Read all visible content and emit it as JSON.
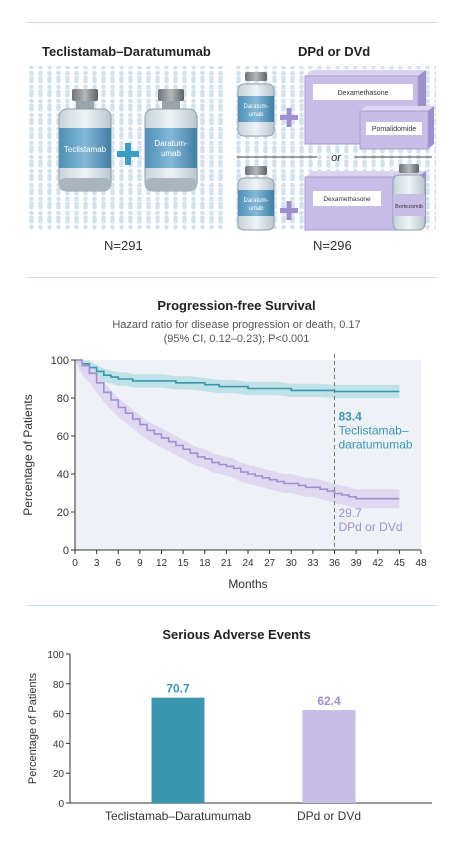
{
  "arms": {
    "left": {
      "title": "Teclistamab–Daratumumab",
      "n": "N=291",
      "vial1": "Teclistamab",
      "vial2_line1": "Daratum-",
      "vial2_line2": "umab"
    },
    "right": {
      "title": "DPd or DVd",
      "n": "N=296",
      "or": "or",
      "vial_line1": "Daratum-",
      "vial_line2": "umab",
      "box_dex": "Dexamethasone",
      "box_pom": "Pomalidomide",
      "box_dex2": "Dexamethasone",
      "box_bor": "Bortezomib"
    }
  },
  "colors": {
    "teal": "#3a96b0",
    "lavender": "#a08fd0",
    "lavender_light": "#c7bde6",
    "panel": "#eef2f6",
    "people": "#dbe8f1",
    "plus": "#3e9cc0"
  },
  "chart_data": [
    {
      "type": "line",
      "title": "Progression-free Survival",
      "subtitle_line1": "Hazard ratio for disease progression or death, 0.17",
      "subtitle_line2": "(95% CI, 0.12–0.23); P<0.001",
      "xlabel": "Months",
      "ylabel": "Percentage of Patients",
      "xlim": [
        0,
        48
      ],
      "ylim": [
        0,
        100
      ],
      "xticks": [
        0,
        3,
        6,
        9,
        12,
        15,
        18,
        21,
        24,
        27,
        30,
        33,
        36,
        39,
        42,
        45,
        48
      ],
      "yticks": [
        0,
        20,
        40,
        60,
        80,
        100
      ],
      "reference_line_x": 36,
      "series": [
        {
          "name": "Teclistamab–daratumumab",
          "end_label": "83.4",
          "label_line1": "Teclistamab–",
          "label_line2": "daratumumab",
          "x": [
            0,
            1,
            2,
            3,
            4,
            5,
            6,
            7,
            8,
            9,
            10,
            12,
            14,
            16,
            18,
            20,
            22,
            24,
            26,
            28,
            30,
            32,
            34,
            36,
            38,
            40,
            42,
            44,
            45
          ],
          "y": [
            100,
            98,
            96,
            94,
            92,
            91,
            90,
            90,
            89,
            89,
            89,
            89,
            88,
            88,
            87,
            86,
            86,
            85,
            85,
            85,
            84,
            84,
            84,
            83.4,
            83.4,
            83.4,
            83.4,
            83.4,
            83.4
          ]
        },
        {
          "name": "DPd or DVd",
          "end_label": "29.7",
          "label_line1": "DPd or DVd",
          "x": [
            0,
            1,
            2,
            3,
            4,
            5,
            6,
            7,
            8,
            9,
            10,
            11,
            12,
            13,
            14,
            15,
            16,
            17,
            18,
            19,
            20,
            21,
            22,
            23,
            24,
            25,
            26,
            27,
            28,
            29,
            30,
            31,
            32,
            33,
            34,
            35,
            36,
            37,
            38,
            39,
            40,
            41,
            42,
            43,
            44,
            45
          ],
          "y": [
            100,
            97,
            93,
            88,
            83,
            79,
            75,
            72,
            69,
            66,
            63,
            61,
            59,
            57,
            55,
            53,
            51,
            49,
            48,
            46,
            45,
            44,
            43,
            41,
            40,
            39,
            38,
            37,
            36,
            35,
            35,
            34,
            33,
            33,
            32,
            31,
            29.7,
            29,
            28,
            27,
            27,
            27,
            27,
            27,
            27,
            27
          ]
        }
      ]
    },
    {
      "type": "bar",
      "title": "Serious Adverse Events",
      "ylabel": "Percentage of Patients",
      "ylim": [
        0,
        100
      ],
      "yticks": [
        0,
        20,
        40,
        60,
        80,
        100
      ],
      "categories": [
        "Teclistamab–Daratumumab",
        "DPd or DVd"
      ],
      "values": [
        70.7,
        62.4
      ],
      "value_labels": [
        "70.7",
        "62.4"
      ]
    }
  ]
}
